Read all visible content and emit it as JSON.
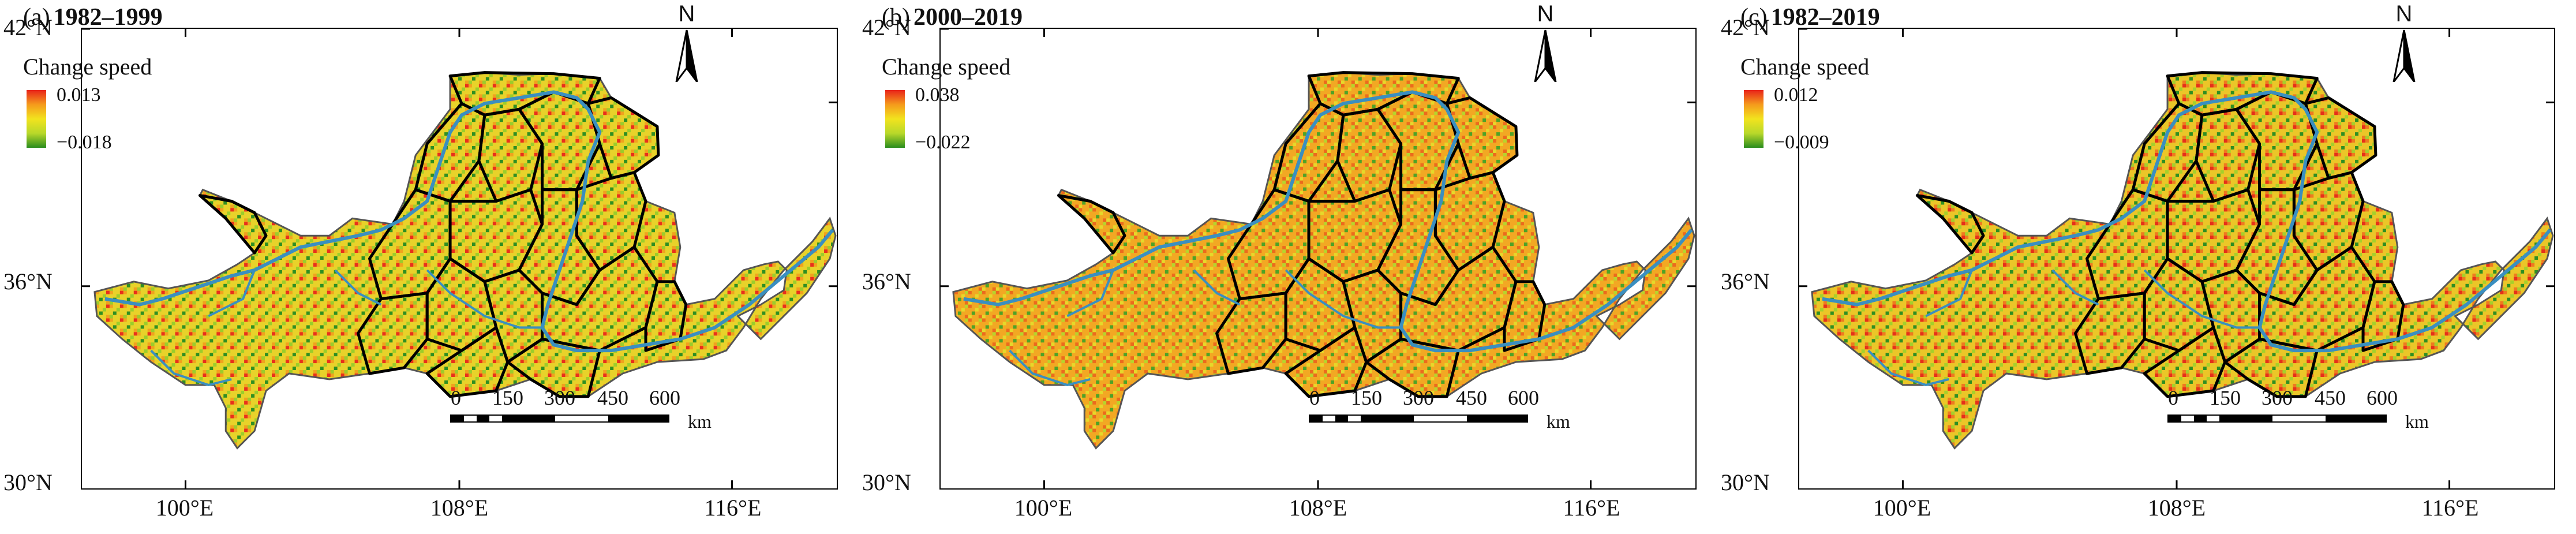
{
  "colors": {
    "high": "#e8231a",
    "mid_high": "#f59a1c",
    "mid": "#f2e31e",
    "mid_low": "#b8d82a",
    "low": "#2a8c1e",
    "river": "#3a8fc0",
    "outline": "#000000",
    "basin_fill_base": "#c8d84a"
  },
  "axes": {
    "lat_labels": [
      "42°N",
      "36°N",
      "30°N"
    ],
    "lon_labels": [
      "100°E",
      "108°E",
      "116°E"
    ]
  },
  "legend_title": "Change speed",
  "scale_bar": {
    "ticks": [
      "0",
      "150",
      "300",
      "450",
      "600"
    ],
    "unit": "km"
  },
  "north_arrow": {
    "letter": "N",
    "icon": "north-arrow-icon"
  },
  "panels": [
    {
      "label": "(a)",
      "period": "1982–1999",
      "max": "0.013",
      "min": "−0.018",
      "tone": "mixed"
    },
    {
      "label": "(b)",
      "period": "2000–2019",
      "max": "0.038",
      "min": "−0.022",
      "tone": "warm"
    },
    {
      "label": "(c)",
      "period": "1982–2019",
      "max": "0.012",
      "min": "−0.009",
      "tone": "mixed-warm"
    }
  ]
}
